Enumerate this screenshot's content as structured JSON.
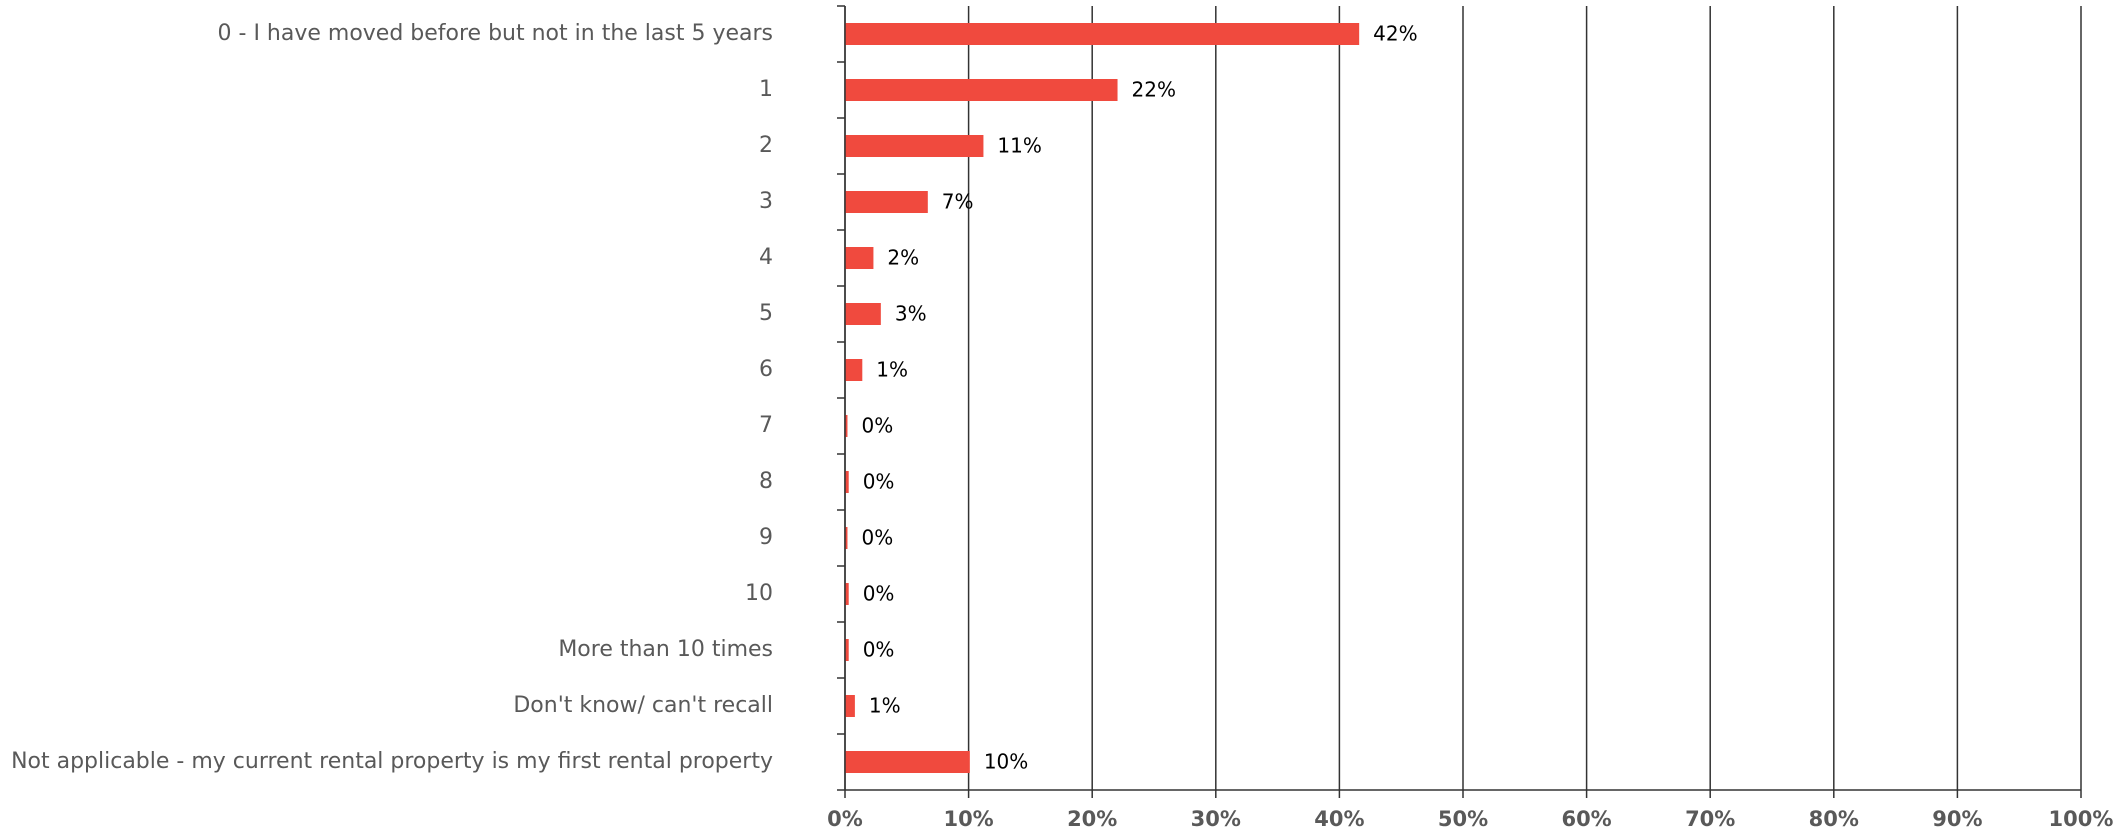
{
  "chart_data": {
    "type": "bar",
    "orientation": "horizontal",
    "color": "#f04a3e",
    "categories": [
      "0 - I have moved before but not in the last 5 years",
      "1",
      "2",
      "3",
      "4",
      "5",
      "6",
      "7",
      "8",
      "9",
      "10",
      "More than 10 times",
      "Don't know/ can't recall",
      "Not applicable - my current rental property is my first rental property"
    ],
    "values": [
      41.6,
      22.05,
      11.2,
      6.7,
      2.3,
      2.9,
      1.4,
      0.2,
      0.3,
      0.2,
      0.3,
      0.3,
      0.8,
      10.1
    ],
    "value_labels": [
      "42%",
      "22%",
      "11%",
      "7%",
      "2%",
      "3%",
      "1%",
      "0%",
      "0%",
      "0%",
      "0%",
      "0%",
      "1%",
      "10%"
    ],
    "xlim": [
      0,
      100
    ],
    "xticks": [
      {
        "value": 0,
        "label": "0%"
      },
      {
        "value": 10,
        "label": "10%"
      },
      {
        "value": 20,
        "label": "20%"
      },
      {
        "value": 30,
        "label": "30%"
      },
      {
        "value": 40,
        "label": "40%"
      },
      {
        "value": 50,
        "label": "50%"
      },
      {
        "value": 60,
        "label": "60%"
      },
      {
        "value": 70,
        "label": "70%"
      },
      {
        "value": 80,
        "label": "80%"
      },
      {
        "value": 90,
        "label": "90%"
      },
      {
        "value": 100,
        "label": "100%"
      }
    ],
    "grid": true
  }
}
